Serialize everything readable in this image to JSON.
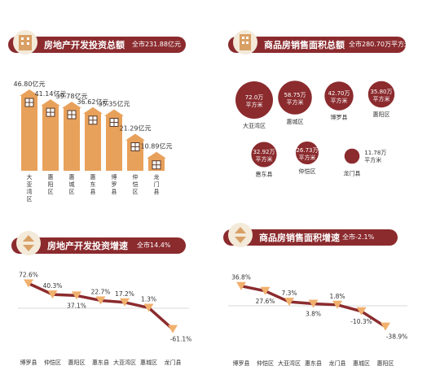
{
  "colors": {
    "brand": "#8b2b2e",
    "accent": "#e8a15b",
    "line": "#b65f37",
    "marker": "#f0b06e",
    "text": "#333333"
  },
  "chart_data": [
    {
      "type": "bar",
      "title": "房地产开发投资总额",
      "subtitle": "全市231.88亿元",
      "unit": "亿元",
      "categories": [
        "大亚湾区",
        "惠阳区",
        "惠城区",
        "惠东县",
        "博罗县",
        "仲恺区",
        "龙门县"
      ],
      "values": [
        46.8,
        41.14,
        39.78,
        36.62,
        35.35,
        21.29,
        10.89
      ],
      "labels": [
        "46.80亿元",
        "41.14亿元",
        "39.78亿元",
        "36.62亿元",
        "35.35亿元",
        "21.29亿元",
        "10.89亿元"
      ],
      "icon": "house-icon"
    },
    {
      "type": "bubble",
      "title": "商品房销售面积总额",
      "subtitle": "全市280.70万平方米",
      "categories": [
        "大亚湾区",
        "惠城区",
        "博罗县",
        "惠阳区",
        "惠东县",
        "仲恺区",
        "龙门县"
      ],
      "values": [
        72.0,
        58.75,
        42.7,
        35.8,
        32.92,
        26.73,
        11.78
      ],
      "labels": [
        "72.0万平方米",
        "58.75万平方米",
        "42.70万平方米",
        "35.80万平方米",
        "32.92万平方米",
        "26.73万平方米",
        "11.78万平方米"
      ],
      "value_lines": [
        "72.0万",
        "58.75万",
        "42.70万",
        "35.80万",
        "32.92万",
        "26.73万",
        "11.78万"
      ],
      "unit_line": "平方米"
    },
    {
      "type": "line",
      "title": "房地产开发投资增速",
      "subtitle": "全市14.4%",
      "categories": [
        "博罗县",
        "仲恺区",
        "惠阳区",
        "惠东县",
        "大亚湾区",
        "惠城区",
        "龙门县"
      ],
      "values": [
        72.6,
        40.3,
        37.1,
        22.7,
        17.2,
        1.3,
        -61.1
      ],
      "labels": [
        "72.6%",
        "40.3%",
        "37.1%",
        "22.7%",
        "17.2%",
        "1.3%",
        "-61.1%"
      ]
    },
    {
      "type": "line",
      "title": "商品房销售面积增速",
      "subtitle": "全市-2.1%",
      "categories": [
        "博罗县",
        "仲恺区",
        "大亚湾区",
        "惠东县",
        "龙门县",
        "惠城区",
        "惠阳区"
      ],
      "values": [
        36.8,
        27.6,
        7.3,
        3.8,
        1.8,
        -10.3,
        -38.9
      ],
      "labels": [
        "36.8%",
        "27.6%",
        "7.3%",
        "3.8%",
        "1.8%",
        "-10.3%",
        "-38.9%"
      ]
    }
  ]
}
